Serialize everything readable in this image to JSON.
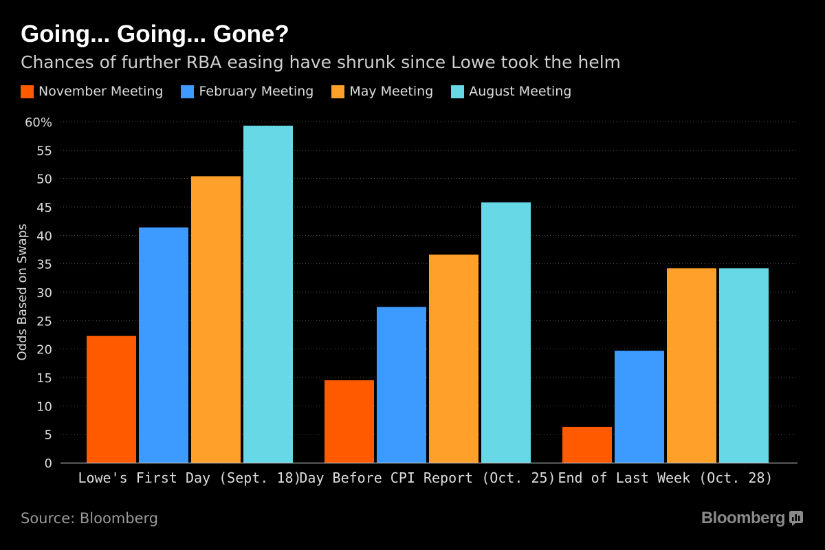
{
  "header": {
    "title": "Going... Going... Gone?",
    "subtitle": "Chances of further RBA easing have shrunk since Lowe took the helm"
  },
  "footer": {
    "source": "Source: Bloomberg",
    "brand": "Bloomberg",
    "brand_icon": "bloomberg-chart-icon"
  },
  "colors": {
    "background": "#000000",
    "grid": "#555555",
    "axis": "#bbbbbb",
    "tick_text": "#dddddd"
  },
  "chart_data": {
    "type": "bar",
    "title": "Going... Going... Gone?",
    "subtitle": "Chances of further RBA easing have shrunk since Lowe took the helm",
    "xlabel": "",
    "ylabel": "Odds Based on Swaps",
    "ylim": [
      0,
      60
    ],
    "yticks": [
      0,
      5,
      10,
      15,
      20,
      25,
      30,
      35,
      40,
      45,
      50,
      55,
      60
    ],
    "ytick_labels": [
      "0",
      "5",
      "10",
      "15",
      "20",
      "25",
      "30",
      "35",
      "40",
      "45",
      "50",
      "55",
      "60%"
    ],
    "grid": true,
    "legend_position": "top-left",
    "categories": [
      "Lowe's First Day (Sept. 18)",
      "Day Before CPI Report (Oct. 25)",
      "End of Last Week (Oct. 28)"
    ],
    "series": [
      {
        "name": "November Meeting",
        "color": "#ff5a00",
        "values": [
          22.3,
          14.5,
          6.3
        ]
      },
      {
        "name": "February Meeting",
        "color": "#3d9bff",
        "values": [
          41.4,
          27.4,
          19.7
        ]
      },
      {
        "name": "May Meeting",
        "color": "#ffa02a",
        "values": [
          50.4,
          36.6,
          34.2
        ]
      },
      {
        "name": "August Meeting",
        "color": "#67d9e6",
        "values": [
          59.3,
          45.8,
          34.2
        ]
      }
    ]
  }
}
